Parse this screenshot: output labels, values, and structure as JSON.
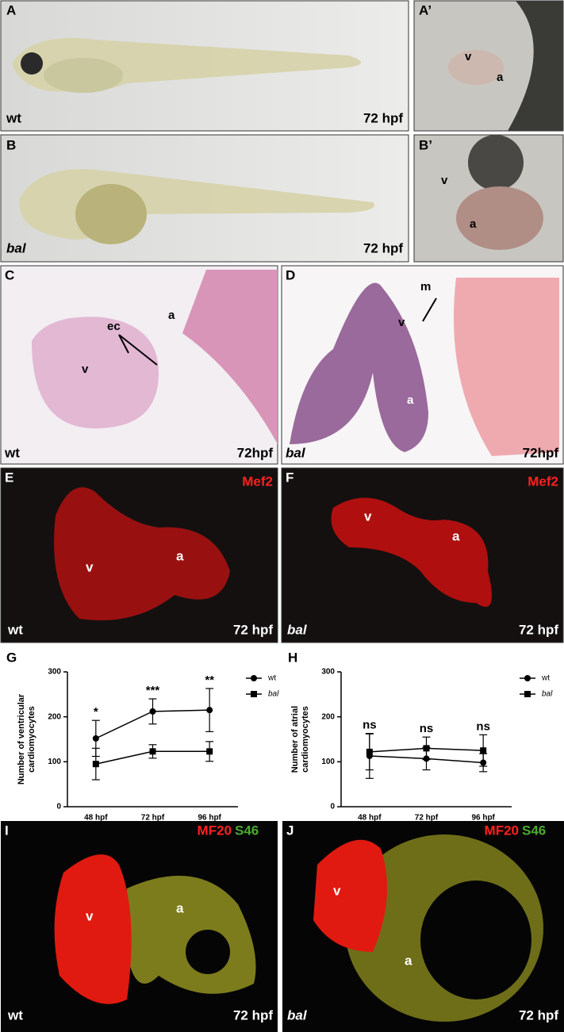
{
  "panels": [
    {
      "letter": "A",
      "texts": [
        "wt",
        "72 hpf"
      ]
    },
    {
      "letter": "A’",
      "texts": [
        "v",
        "a"
      ]
    },
    {
      "letter": "B",
      "texts": [
        "bal",
        "72 hpf"
      ]
    },
    {
      "letter": "B’",
      "texts": [
        "v",
        "a"
      ]
    },
    {
      "letter": "C",
      "texts": [
        "ec",
        "a",
        "v",
        "wt",
        "72hpf"
      ]
    },
    {
      "letter": "D",
      "texts": [
        "m",
        "v",
        "a",
        "bal",
        "72hpf"
      ]
    },
    {
      "letter": "E",
      "texts": [
        "Mef2",
        "v",
        "a",
        "wt",
        "72 hpf"
      ]
    },
    {
      "letter": "F",
      "texts": [
        "Mef2",
        "v",
        "a",
        "bal",
        "72 hpf"
      ]
    },
    {
      "letter": "I",
      "texts": [
        "MF20",
        "S46",
        "v",
        "a",
        "wt",
        "72 hpf"
      ]
    },
    {
      "letter": "J",
      "texts": [
        "MF20",
        "S46",
        "v",
        "a",
        "bal",
        "72 hpf"
      ]
    }
  ],
  "chart_data": [
    {
      "type": "line",
      "panel_label": "G",
      "y_label": [
        "Number of ventricular",
        "cardiomyocytes"
      ],
      "categories": [
        "48 hpf",
        "72 hpf",
        "96 hpf"
      ],
      "series": [
        {
          "name": "wt",
          "color": "#000000",
          "marker": "circle",
          "values": [
            152,
            212,
            215
          ],
          "errors": [
            40,
            28,
            48
          ]
        },
        {
          "name": "bal",
          "color": "#000000",
          "marker": "square",
          "values": [
            95,
            123,
            123
          ],
          "errors": [
            35,
            15,
            22
          ]
        }
      ],
      "annotations": [
        "*",
        "***",
        "**"
      ],
      "ylim": [
        0,
        300
      ],
      "yticks": [
        0,
        100,
        200,
        300
      ],
      "legend": "right"
    },
    {
      "type": "line",
      "panel_label": "H",
      "y_label": [
        "Number of atrial",
        "cardiomyocytes"
      ],
      "categories": [
        "48 hpf",
        "72 hpf",
        "96 hpf"
      ],
      "series": [
        {
          "name": "wt",
          "color": "#000000",
          "marker": "circle",
          "values": [
            113,
            107,
            98
          ],
          "errors": [
            50,
            25,
            20
          ]
        },
        {
          "name": "bal",
          "color": "#000000",
          "marker": "square",
          "values": [
            122,
            130,
            125
          ],
          "errors": [
            40,
            25,
            35
          ]
        }
      ],
      "annotations": [
        "ns",
        "ns",
        "ns"
      ],
      "ylim": [
        0,
        300
      ],
      "yticks": [
        0,
        100,
        200,
        300
      ],
      "legend": "right"
    }
  ]
}
